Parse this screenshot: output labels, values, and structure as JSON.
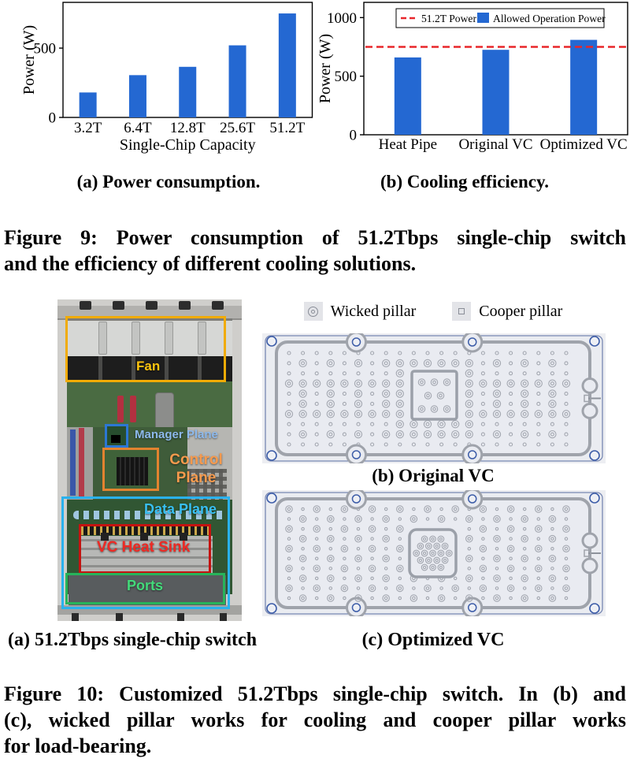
{
  "figure9": {
    "subcaption_a": "(a) Power consumption.",
    "subcaption_b": "(b) Cooling efficiency.",
    "caption_line1": "Figure 9: Power consumption of 51.2Tbps single-chip switch",
    "caption_line2": "and the efficiency of different cooling solutions."
  },
  "chart_data": [
    {
      "type": "bar",
      "categories": [
        "3.2T",
        "6.4T",
        "12.8T",
        "25.6T",
        "51.2T"
      ],
      "values": [
        180,
        305,
        365,
        520,
        750
      ],
      "xlabel": "Single-Chip Capacity",
      "ylabel": "Power (W)",
      "yticks": [
        0,
        500
      ],
      "ylim": [
        0,
        830
      ],
      "bar_color": "#2468d2",
      "grid": false
    },
    {
      "type": "bar",
      "categories": [
        "Heat Pipe",
        "Original VC",
        "Optimized VC"
      ],
      "values": [
        660,
        725,
        810
      ],
      "xlabel": "",
      "ylabel": "Power (W)",
      "yticks": [
        0,
        500,
        1000
      ],
      "ylim": [
        0,
        1130
      ],
      "bar_color": "#2468d2",
      "reference_line": {
        "label": "51.2T Power",
        "value": 750,
        "color": "#e8262a",
        "style": "dashed"
      },
      "legend": [
        "51.2T Power",
        "Allowed Operation Power"
      ],
      "legend_position": "top",
      "grid": false
    }
  ],
  "figure10": {
    "photo": {
      "annotations": [
        {
          "label": "Fan",
          "box_color": "#f0ab06",
          "text_color": "#ffc40e"
        },
        {
          "label": "Manager Plane",
          "box_color": "#2c77d4",
          "text_color": "#8db9ec"
        },
        {
          "label": "Control Plane",
          "box_color": "#e2832f",
          "text_color": "#f79a4d"
        },
        {
          "label": "Data Plane",
          "box_color": "#29b2ee",
          "text_color": "#38bff2"
        },
        {
          "label": "VC Heat Sink",
          "box_color": "#c51210",
          "text_color": "#ee2a24"
        },
        {
          "label": "Ports",
          "box_color": "#27b35a",
          "text_color": "#43da7a"
        }
      ]
    },
    "vc_legend": {
      "wicked": "Wicked pillar",
      "cooper": "Cooper pillar"
    },
    "subcaption_a": "(a) 51.2Tbps single-chip switch",
    "subcaption_b": "(b) Original VC",
    "subcaption_c": "(c) Optimized VC",
    "caption_line1": "Figure 10: Customized 51.2Tbps single-chip switch. In (b) and",
    "caption_line2": "(c), wicked pillar works for cooling and cooper pillar works",
    "caption_line3": "for load-bearing."
  }
}
